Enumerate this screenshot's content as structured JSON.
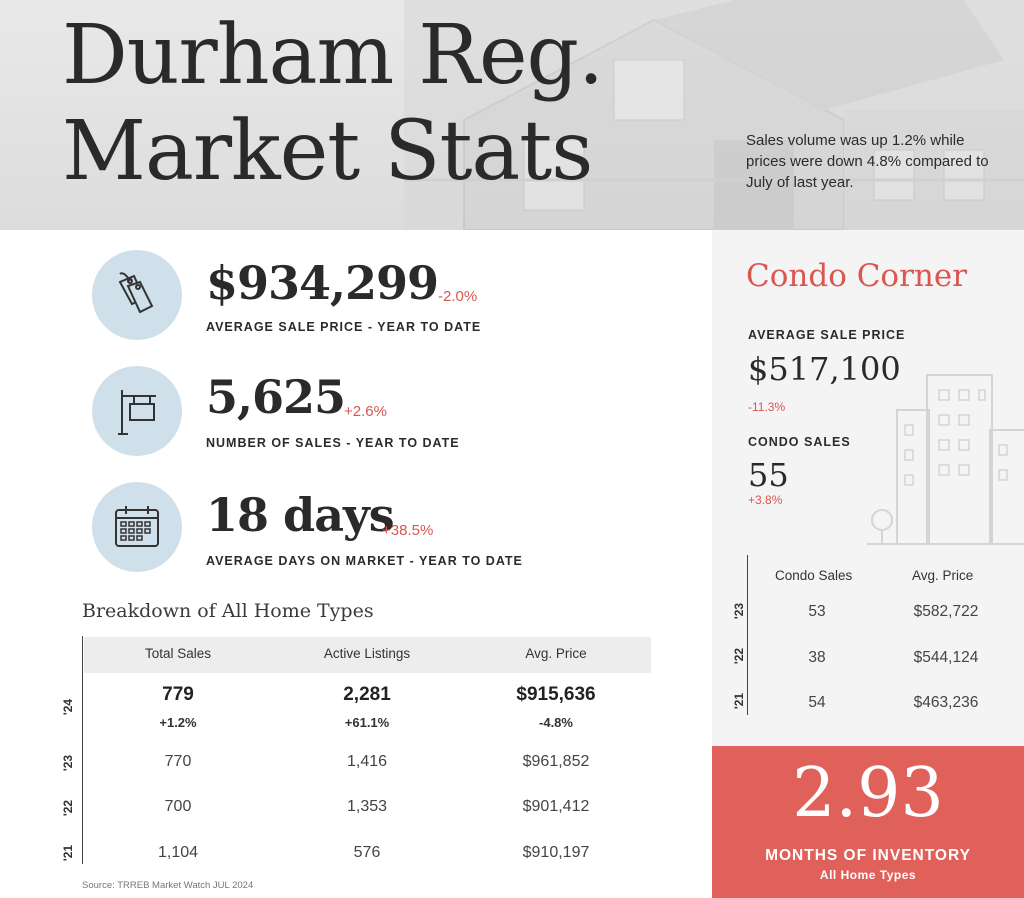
{
  "header": {
    "title_line1": "Durham Reg.",
    "title_line2": "Market Stats",
    "intro": "Sales volume was up 1.2% while prices were down 4.8% compared to July of last year."
  },
  "stats": [
    {
      "value": "$934,299",
      "change": "-2.0%",
      "label": "AVERAGE SALE PRICE - YEAR TO DATE",
      "icon": "price-tag-icon"
    },
    {
      "value": "5,625",
      "change": "+2.6%",
      "label": "NUMBER OF SALES - YEAR TO DATE",
      "icon": "for-sale-sign-icon"
    },
    {
      "value": "18 days",
      "change": "+38.5%",
      "label": "AVERAGE DAYS ON MARKET - YEAR TO DATE",
      "icon": "calendar-icon"
    }
  ],
  "breakdown": {
    "title": "Breakdown of All Home Types",
    "columns": [
      "Total Sales",
      "Active Listings",
      "Avg. Price"
    ],
    "rows": [
      {
        "year": "'24",
        "values": [
          "779",
          "2,281",
          "$915,636"
        ],
        "changes": [
          "+1.2%",
          "+61.1%",
          "-4.8%"
        ]
      },
      {
        "year": "'23",
        "values": [
          "770",
          "1,416",
          "$961,852"
        ]
      },
      {
        "year": "'22",
        "values": [
          "700",
          "1,353",
          "$901,412"
        ]
      },
      {
        "year": "'21",
        "values": [
          "1,104",
          "576",
          "$910,197"
        ]
      }
    ],
    "source": "Source: TRREB Market Watch JUL 2024"
  },
  "condo": {
    "title": "Condo Corner",
    "avg_price_label": "AVERAGE SALE PRICE",
    "avg_price": "$517,100",
    "avg_price_change": "-11.3%",
    "sales_label": "CONDO SALES",
    "sales": "55",
    "sales_change": "+3.8%",
    "columns": [
      "Condo Sales",
      "Avg. Price"
    ],
    "rows": [
      {
        "year": "'23",
        "values": [
          "53",
          "$582,722"
        ]
      },
      {
        "year": "'22",
        "values": [
          "38",
          "$544,124"
        ]
      },
      {
        "year": "'21",
        "values": [
          "54",
          "$463,236"
        ]
      }
    ]
  },
  "inventory": {
    "value": "2.93",
    "label": "MONTHS OF INVENTORY",
    "sublabel": "All Home Types"
  },
  "colors": {
    "accent_red": "#d9574f",
    "inventory_bg": "#e0605a",
    "icon_circle": "#cfe0eb"
  }
}
